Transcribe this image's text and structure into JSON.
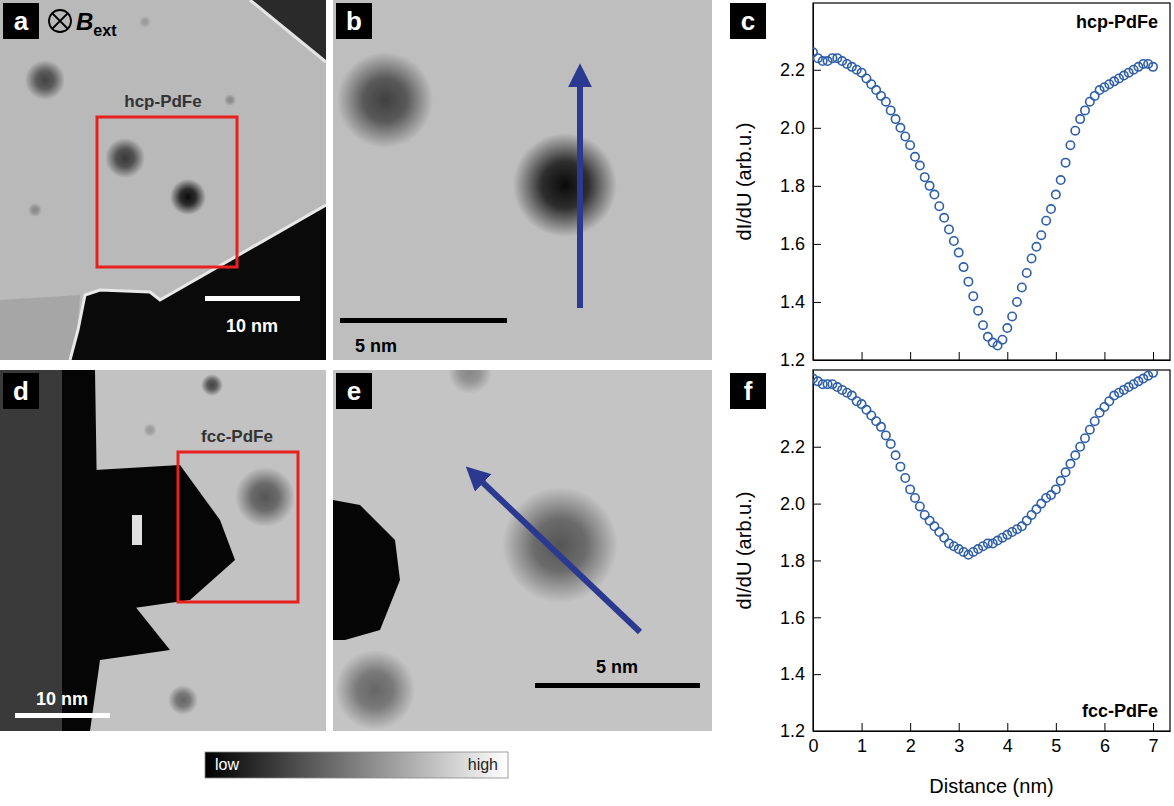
{
  "figure": {
    "field": {
      "symbol": "B",
      "subscript": "ext"
    },
    "colorbar": {
      "low": "low",
      "high": "high"
    },
    "images": [
      {
        "letter": "a",
        "label": "hcp-PdFe",
        "scale_bar": "10 nm"
      },
      {
        "letter": "b",
        "scale_bar": "5 nm"
      },
      {
        "letter": "d",
        "label": "fcc-PdFe",
        "scale_bar": "10 nm"
      },
      {
        "letter": "e",
        "scale_bar": "5 nm"
      }
    ],
    "chart_letters": [
      "c",
      "f"
    ]
  },
  "chart_data": [
    {
      "type": "scatter",
      "title": "hcp-PdFe",
      "y_label": "dI/dU (arb.u.)",
      "x": [
        0,
        0.1,
        0.2,
        0.3,
        0.4,
        0.5,
        0.6,
        0.7,
        0.8,
        0.9,
        1,
        1.1,
        1.2,
        1.3,
        1.4,
        1.5,
        1.6,
        1.7,
        1.8,
        1.9,
        2,
        2.1,
        2.2,
        2.3,
        2.4,
        2.5,
        2.6,
        2.7,
        2.8,
        2.9,
        3,
        3.1,
        3.2,
        3.3,
        3.4,
        3.5,
        3.6,
        3.7,
        3.8,
        3.9,
        4,
        4.1,
        4.2,
        4.3,
        4.4,
        4.5,
        4.6,
        4.7,
        4.8,
        4.9,
        5,
        5.1,
        5.2,
        5.3,
        5.4,
        5.5,
        5.6,
        5.7,
        5.8,
        5.9,
        6,
        6.1,
        6.2,
        6.3,
        6.4,
        6.5,
        6.6,
        6.7,
        6.8,
        6.9,
        7
      ],
      "series": [
        {
          "color": "#2e5fa8",
          "marker": "circle",
          "values": [
            2.26,
            2.24,
            2.23,
            2.23,
            2.24,
            2.24,
            2.23,
            2.22,
            2.21,
            2.2,
            2.19,
            2.17,
            2.15,
            2.13,
            2.11,
            2.09,
            2.06,
            2.03,
            2.0,
            1.97,
            1.94,
            1.9,
            1.87,
            1.83,
            1.8,
            1.77,
            1.73,
            1.69,
            1.65,
            1.61,
            1.57,
            1.52,
            1.47,
            1.42,
            1.37,
            1.32,
            1.28,
            1.26,
            1.25,
            1.27,
            1.31,
            1.35,
            1.4,
            1.45,
            1.5,
            1.55,
            1.59,
            1.63,
            1.68,
            1.72,
            1.77,
            1.82,
            1.88,
            1.94,
            1.99,
            2.03,
            2.06,
            2.09,
            2.11,
            2.13,
            2.14,
            2.15,
            2.16,
            2.17,
            2.18,
            2.19,
            2.2,
            2.21,
            2.22,
            2.22,
            2.21
          ]
        }
      ],
      "xlim": [
        0,
        7.35
      ],
      "ylim": [
        1.2,
        2.43
      ],
      "xticks": [
        0,
        1,
        2,
        3,
        4,
        5,
        6,
        7
      ],
      "yticks": [
        1.2,
        1.4,
        1.6,
        1.8,
        {
          "value": 2,
          "label": "2.0"
        },
        2.2
      ],
      "tick_labels": "y"
    },
    {
      "type": "scatter",
      "title": "fcc-PdFe",
      "x_label": "Distance (nm)",
      "y_label": "dI/dU (arb.u.)",
      "x": [
        0,
        0.1,
        0.2,
        0.3,
        0.4,
        0.5,
        0.6,
        0.7,
        0.8,
        0.9,
        1,
        1.1,
        1.2,
        1.3,
        1.4,
        1.5,
        1.6,
        1.7,
        1.8,
        1.9,
        2,
        2.1,
        2.2,
        2.3,
        2.4,
        2.5,
        2.6,
        2.7,
        2.8,
        2.9,
        3,
        3.1,
        3.2,
        3.3,
        3.4,
        3.5,
        3.6,
        3.7,
        3.8,
        3.9,
        4,
        4.1,
        4.2,
        4.3,
        4.4,
        4.5,
        4.6,
        4.7,
        4.8,
        4.9,
        5,
        5.1,
        5.2,
        5.3,
        5.4,
        5.5,
        5.6,
        5.7,
        5.8,
        5.9,
        6,
        6.1,
        6.2,
        6.3,
        6.4,
        6.5,
        6.6,
        6.7,
        6.8,
        6.9,
        7
      ],
      "series": [
        {
          "color": "#2e5fa8",
          "marker": "circle",
          "values": [
            2.44,
            2.43,
            2.42,
            2.42,
            2.42,
            2.41,
            2.4,
            2.39,
            2.38,
            2.36,
            2.35,
            2.33,
            2.31,
            2.29,
            2.27,
            2.24,
            2.21,
            2.17,
            2.13,
            2.09,
            2.05,
            2.02,
            1.99,
            1.96,
            1.94,
            1.92,
            1.9,
            1.88,
            1.86,
            1.85,
            1.84,
            1.83,
            1.82,
            1.83,
            1.84,
            1.85,
            1.86,
            1.86,
            1.87,
            1.88,
            1.89,
            1.9,
            1.91,
            1.92,
            1.94,
            1.96,
            1.98,
            2.0,
            2.02,
            2.03,
            2.05,
            2.08,
            2.11,
            2.14,
            2.17,
            2.2,
            2.23,
            2.26,
            2.29,
            2.32,
            2.34,
            2.36,
            2.38,
            2.39,
            2.4,
            2.41,
            2.42,
            2.43,
            2.44,
            2.45,
            2.46
          ]
        }
      ],
      "xlim": [
        0,
        7.35
      ],
      "ylim": [
        1.2,
        2.47
      ],
      "xticks": [
        0,
        1,
        2,
        3,
        4,
        5,
        6,
        7
      ],
      "yticks": [
        1.2,
        1.4,
        1.6,
        1.8,
        {
          "value": 2,
          "label": "2.0"
        },
        2.2
      ]
    }
  ]
}
